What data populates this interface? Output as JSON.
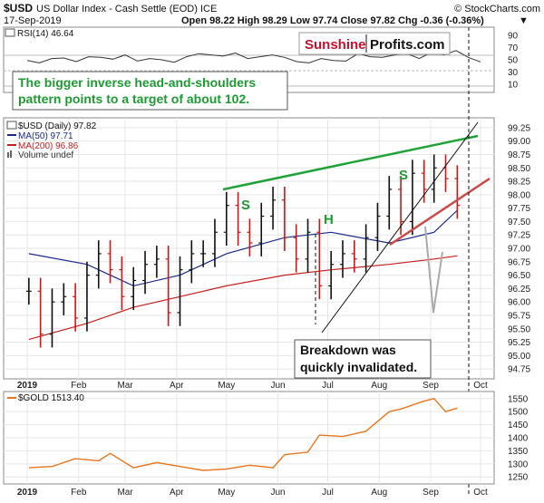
{
  "header": {
    "symbol": "$USD",
    "name": "US Dollar Index - Cash Settle (EOD)",
    "exchange": "ICE",
    "source": "© StockCharts.com",
    "date": "17-Sep-2019",
    "ohlc": "Open 98.22  High 98.29  Low 97.74  Close 97.82  Chg -0.36 (-0.36%)",
    "chg_arrow": "▼"
  },
  "logo": {
    "part1": "Sunshine",
    "part2": "Profits.com"
  },
  "rsi_panel": {
    "label": "RSI(14) 46.64",
    "ticks": [
      "90",
      "70",
      "50",
      "30",
      "10"
    ]
  },
  "annotations": {
    "title_line1": "The bigger inverse head-and-shoulders",
    "title_line2": "pattern points to a target of about 102.",
    "breakdown_line1": "Breakdown was",
    "breakdown_line2": "quickly invalidated.",
    "s_left": "S",
    "h": "H",
    "s_right": "S"
  },
  "main_legend": {
    "price": "$USD (Daily) 97.82",
    "ma50": "MA(50) 97.71",
    "ma200": "MA(200) 96.86",
    "volume": "Volume undef"
  },
  "gold_panel": {
    "label": "$GOLD 1513.40"
  },
  "colors": {
    "up": "#111111",
    "down": "#d21414",
    "ma50": "#1c2a8c",
    "ma200": "#c81e1e",
    "neckline": "#1fa237",
    "annotation_green": "#1e9a33",
    "gold_line": "#e8761e",
    "logo_red": "#c8102e"
  },
  "chart_data": [
    {
      "type": "line",
      "title": "$USD US Dollar Index - Cash Settle (EOD) ICE",
      "panel": "main",
      "x_ticks": [
        "2019",
        "Feb",
        "Mar",
        "Apr",
        "May",
        "Jun",
        "Jul",
        "Aug",
        "Sep",
        "Oct"
      ],
      "y_ticks": [
        94.75,
        95.0,
        95.25,
        95.5,
        95.75,
        96.0,
        96.25,
        96.5,
        96.75,
        97.0,
        97.25,
        97.5,
        97.75,
        98.0,
        98.25,
        98.5,
        98.75,
        99.0,
        99.25
      ],
      "ylim": [
        94.6,
        99.4
      ],
      "series": [
        {
          "name": "$USD (Daily) 97.82",
          "x": [
            "2019-01-02",
            "2019-01-09",
            "2019-01-16",
            "2019-01-23",
            "2019-01-30",
            "2019-02-06",
            "2019-02-13",
            "2019-02-20",
            "2019-02-27",
            "2019-03-06",
            "2019-03-13",
            "2019-03-20",
            "2019-03-27",
            "2019-04-03",
            "2019-04-10",
            "2019-04-17",
            "2019-04-24",
            "2019-05-01",
            "2019-05-08",
            "2019-05-15",
            "2019-05-22",
            "2019-05-29",
            "2019-06-05",
            "2019-06-12",
            "2019-06-19",
            "2019-06-26",
            "2019-07-03",
            "2019-07-10",
            "2019-07-17",
            "2019-07-24",
            "2019-07-31",
            "2019-08-07",
            "2019-08-14",
            "2019-08-21",
            "2019-08-28",
            "2019-09-03",
            "2019-09-10",
            "2019-09-17"
          ],
          "values": [
            96.2,
            95.4,
            96.0,
            96.1,
            95.7,
            96.5,
            96.9,
            96.6,
            96.1,
            96.4,
            96.7,
            96.8,
            95.8,
            96.6,
            96.9,
            96.9,
            97.3,
            97.8,
            97.3,
            97.1,
            97.6,
            97.9,
            97.2,
            96.8,
            97.3,
            96.3,
            96.7,
            96.9,
            96.8,
            97.2,
            97.6,
            98.1,
            97.5,
            98.4,
            98.1,
            98.5,
            98.3,
            97.8
          ]
        },
        {
          "name": "MA(50) 97.71",
          "x": [
            "2019-01-02",
            "2019-02-06",
            "2019-03-06",
            "2019-04-03",
            "2019-05-01",
            "2019-06-05",
            "2019-07-03",
            "2019-08-07",
            "2019-09-03",
            "2019-09-17"
          ],
          "values": [
            96.9,
            96.7,
            96.3,
            96.5,
            96.9,
            97.2,
            97.3,
            97.1,
            97.3,
            97.71
          ]
        },
        {
          "name": "MA(200) 96.86",
          "x": [
            "2019-01-02",
            "2019-02-06",
            "2019-03-06",
            "2019-04-03",
            "2019-05-01",
            "2019-06-05",
            "2019-07-03",
            "2019-08-07",
            "2019-09-03",
            "2019-09-17"
          ],
          "values": [
            95.3,
            95.6,
            95.9,
            96.1,
            96.3,
            96.5,
            96.6,
            96.7,
            96.8,
            96.86
          ]
        }
      ]
    },
    {
      "type": "line",
      "title": "RSI(14) 46.64",
      "panel": "rsi",
      "y_ticks": [
        90,
        70,
        50,
        30,
        10
      ],
      "ylim": [
        0,
        100
      ],
      "series": [
        {
          "name": "RSI(14) 46.64",
          "values": [
            49,
            45,
            52,
            53,
            47,
            55,
            54,
            51,
            58,
            48,
            52,
            50,
            46,
            55,
            60,
            58,
            56,
            61,
            52,
            55,
            58,
            54,
            47,
            45,
            52,
            49,
            48,
            60,
            55,
            54,
            58,
            60,
            52,
            62,
            58,
            65,
            54,
            46.64
          ]
        }
      ]
    },
    {
      "type": "line",
      "title": "$GOLD 1513.40",
      "panel": "gold",
      "x_ticks": [
        "2019",
        "Feb",
        "Mar",
        "Apr",
        "May",
        "Jun",
        "Jul",
        "Aug",
        "Sep",
        "Oct"
      ],
      "y_ticks": [
        1250,
        1300,
        1350,
        1400,
        1450,
        1500,
        1550
      ],
      "ylim": [
        1230,
        1570
      ],
      "series": [
        {
          "name": "$GOLD 1513.40",
          "x": [
            "2019-01-02",
            "2019-01-16",
            "2019-01-30",
            "2019-02-13",
            "2019-02-20",
            "2019-03-06",
            "2019-03-20",
            "2019-04-03",
            "2019-04-17",
            "2019-05-01",
            "2019-05-15",
            "2019-05-29",
            "2019-06-05",
            "2019-06-19",
            "2019-06-26",
            "2019-07-10",
            "2019-07-24",
            "2019-08-07",
            "2019-08-14",
            "2019-08-28",
            "2019-09-03",
            "2019-09-10",
            "2019-09-17"
          ],
          "values": [
            1285,
            1290,
            1320,
            1312,
            1340,
            1285,
            1305,
            1290,
            1275,
            1280,
            1295,
            1285,
            1335,
            1345,
            1410,
            1405,
            1425,
            1500,
            1510,
            1540,
            1550,
            1500,
            1513.4
          ]
        }
      ]
    }
  ]
}
